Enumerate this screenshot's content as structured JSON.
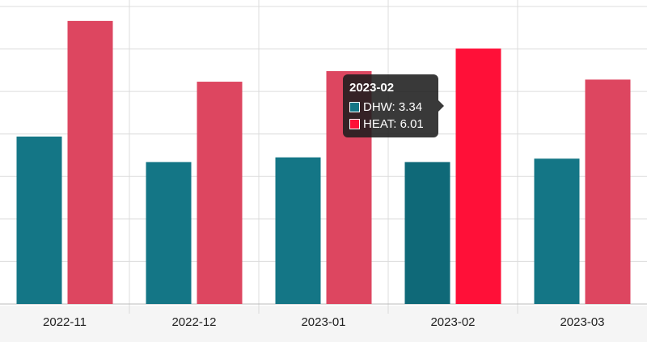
{
  "chart_data": {
    "type": "bar",
    "categories": [
      "2022-11",
      "2022-12",
      "2023-01",
      "2023-02",
      "2023-03"
    ],
    "series": [
      {
        "name": "DHW",
        "color": "#147686",
        "values": [
          3.94,
          3.34,
          3.45,
          3.34,
          3.42
        ]
      },
      {
        "name": "HEAT",
        "color": "#dd4660",
        "values": [
          6.66,
          5.23,
          5.48,
          6.01,
          5.28
        ]
      }
    ],
    "highlight": {
      "category_index": 3,
      "dhw_color": "#0f6978",
      "heat_color": "#ff1038"
    },
    "ylim": [
      0,
      7
    ],
    "grid": true
  },
  "tooltip": {
    "title": "2023-02",
    "rows": [
      {
        "label": "DHW: 3.34",
        "color": "#147686"
      },
      {
        "label": "HEAT: 6.01",
        "color": "#ff1038"
      }
    ]
  }
}
